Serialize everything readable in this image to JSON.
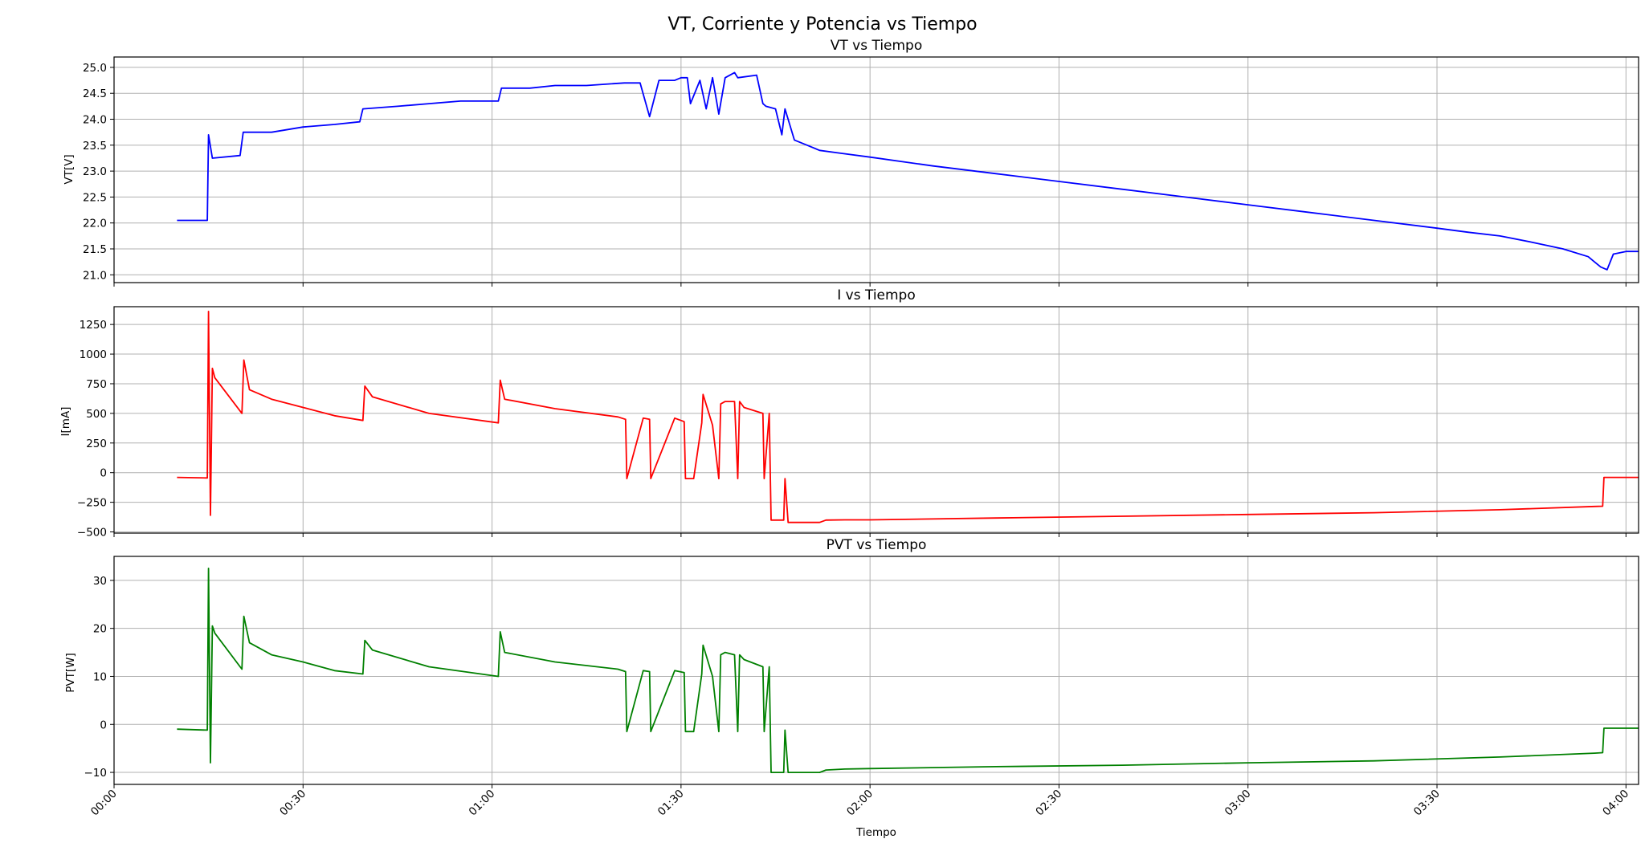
{
  "figure_title": "VT, Corriente y Potencia vs Tiempo",
  "chart_data": [
    {
      "type": "line",
      "title": "VT vs Tiempo",
      "xlabel": "",
      "ylabel": "VT[V]",
      "xlim": [
        0,
        242
      ],
      "ylim": [
        20.85,
        25.2
      ],
      "yticks": [
        21.0,
        21.5,
        22.0,
        22.5,
        23.0,
        23.5,
        24.0,
        24.5,
        25.0
      ],
      "ytick_labels": [
        "21.0",
        "21.5",
        "22.0",
        "22.5",
        "23.0",
        "23.5",
        "24.0",
        "24.5",
        "25.0"
      ],
      "grid": true,
      "color": "#0000ff",
      "x": [
        10,
        14.8,
        15.0,
        15.6,
        20,
        20.5,
        25,
        30,
        35,
        39,
        39.5,
        45,
        50,
        55,
        61,
        61.5,
        66,
        70,
        75,
        81,
        83.5,
        85,
        86.5,
        89,
        90,
        91,
        91.5,
        93,
        94,
        95,
        96,
        97,
        98.5,
        99,
        102,
        103,
        103.5,
        105,
        106,
        106.5,
        108,
        110,
        112,
        115,
        120,
        130,
        140,
        150,
        160,
        170,
        180,
        190,
        200,
        210,
        215,
        220,
        225,
        230,
        234,
        235,
        236,
        237,
        238,
        240,
        245,
        250
      ],
      "y": [
        22.05,
        22.05,
        23.7,
        23.25,
        23.3,
        23.75,
        23.75,
        23.85,
        23.9,
        23.95,
        24.2,
        24.25,
        24.3,
        24.35,
        24.35,
        24.6,
        24.6,
        24.65,
        24.65,
        24.7,
        24.7,
        24.05,
        24.75,
        24.75,
        24.8,
        24.8,
        24.3,
        24.75,
        24.2,
        24.8,
        24.1,
        24.8,
        24.9,
        24.8,
        24.85,
        24.3,
        24.25,
        24.2,
        23.7,
        24.2,
        23.6,
        23.5,
        23.4,
        23.35,
        23.27,
        23.1,
        22.95,
        22.8,
        22.65,
        22.5,
        22.35,
        22.2,
        22.05,
        21.9,
        21.82,
        21.75,
        21.63,
        21.5,
        21.35,
        21.25,
        21.15,
        21.1,
        21.4,
        21.45,
        21.45,
        21.45
      ]
    },
    {
      "type": "line",
      "title": "I vs Tiempo",
      "xlabel": "",
      "ylabel": "I[mA]",
      "xlim": [
        0,
        242
      ],
      "ylim": [
        -510,
        1400
      ],
      "yticks": [
        -500,
        -250,
        0,
        250,
        500,
        750,
        1000,
        1250
      ],
      "ytick_labels": [
        "−500",
        "−250",
        "0",
        "250",
        "500",
        "750",
        "1000",
        "1250"
      ],
      "grid": true,
      "color": "#ff0000",
      "x": [
        10,
        14.8,
        15.0,
        15.3,
        15.6,
        16,
        20.3,
        20.6,
        21.5,
        25,
        30,
        35,
        39.5,
        39.8,
        41,
        50,
        61,
        61.3,
        62,
        70,
        80,
        81.2,
        81.4,
        84,
        85,
        85.2,
        89,
        90.5,
        90.7,
        92,
        93.3,
        93.5,
        95,
        96,
        96.3,
        97,
        98.5,
        99,
        99.3,
        100,
        103,
        103.2,
        104,
        104.3,
        106.3,
        106.5,
        107,
        110,
        112,
        113,
        116,
        120,
        140,
        160,
        180,
        200,
        220,
        235,
        236.3,
        236.5,
        242,
        250
      ],
      "y": [
        -40,
        -45,
        1360,
        -360,
        880,
        800,
        500,
        950,
        700,
        620,
        550,
        480,
        440,
        730,
        640,
        500,
        420,
        780,
        620,
        540,
        470,
        450,
        -50,
        460,
        450,
        -50,
        460,
        430,
        -50,
        -50,
        420,
        660,
        400,
        -50,
        580,
        600,
        600,
        -50,
        600,
        550,
        500,
        -50,
        500,
        -400,
        -400,
        -50,
        -420,
        -420,
        -420,
        -400,
        -398,
        -398,
        -383,
        -368,
        -353,
        -338,
        -313,
        -285,
        -283,
        -40,
        -40,
        -40
      ]
    },
    {
      "type": "line",
      "title": "PVT vs Tiempo",
      "xlabel": "Tiempo",
      "ylabel": "PVT[W]",
      "xlim": [
        0,
        242
      ],
      "ylim": [
        -12.5,
        35
      ],
      "yticks": [
        -10,
        0,
        10,
        20,
        30
      ],
      "ytick_labels": [
        "−10",
        "0",
        "10",
        "20",
        "30"
      ],
      "grid": true,
      "color": "#008000",
      "x": [
        10,
        14.8,
        15.0,
        15.3,
        15.6,
        16,
        20.3,
        20.6,
        21.5,
        25,
        30,
        35,
        39.5,
        39.8,
        41,
        50,
        61,
        61.3,
        62,
        70,
        80,
        81.2,
        81.4,
        84,
        85,
        85.2,
        89,
        90.5,
        90.7,
        92,
        93.3,
        93.5,
        95,
        96,
        96.3,
        97,
        98.5,
        99,
        99.3,
        100,
        103,
        103.2,
        104,
        104.3,
        106.3,
        106.5,
        107,
        110,
        112,
        113,
        116,
        120,
        140,
        160,
        180,
        200,
        220,
        235,
        236.3,
        236.5,
        242,
        250
      ],
      "y": [
        -1,
        -1.2,
        32.5,
        -8,
        20.5,
        19,
        11.5,
        22.5,
        17,
        14.5,
        13,
        11.2,
        10.5,
        17.5,
        15.5,
        12,
        10,
        19.3,
        15,
        13,
        11.5,
        11,
        -1.5,
        11.2,
        11,
        -1.5,
        11.2,
        10.8,
        -1.5,
        -1.5,
        10.5,
        16.5,
        10,
        -1.5,
        14.5,
        15,
        14.5,
        -1.5,
        14.5,
        13.5,
        12,
        -1.5,
        12,
        -10,
        -10,
        -1.2,
        -10,
        -10,
        -10,
        -9.5,
        -9.3,
        -9.2,
        -8.8,
        -8.5,
        -8.0,
        -7.6,
        -6.8,
        -6,
        -5.9,
        -0.8,
        -0.8,
        -0.8
      ]
    }
  ],
  "x_axis": {
    "tick_values_min": [
      0,
      30,
      60,
      90,
      120,
      150,
      180,
      210,
      240
    ],
    "tick_labels": [
      "00:00",
      "00:30",
      "01:00",
      "01:30",
      "02:00",
      "02:30",
      "03:00",
      "03:30",
      "04:00"
    ]
  }
}
